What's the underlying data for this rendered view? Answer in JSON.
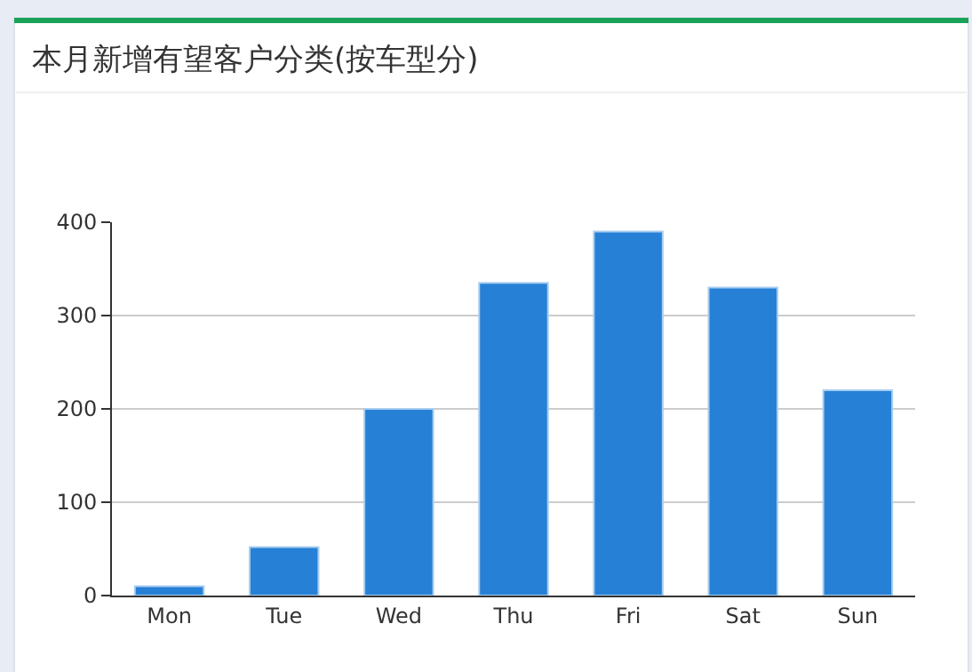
{
  "chart_data": {
    "type": "bar",
    "title": "本月新增有望客户分类(按车型分)",
    "categories": [
      "Mon",
      "Tue",
      "Wed",
      "Thu",
      "Fri",
      "Sat",
      "Sun"
    ],
    "values": [
      10,
      52,
      200,
      335,
      390,
      330,
      220
    ],
    "color": "#2681d6",
    "ylim": [
      0,
      400
    ],
    "yticks": [
      0,
      100,
      200,
      300,
      400
    ],
    "grid": "y",
    "legend": false
  }
}
